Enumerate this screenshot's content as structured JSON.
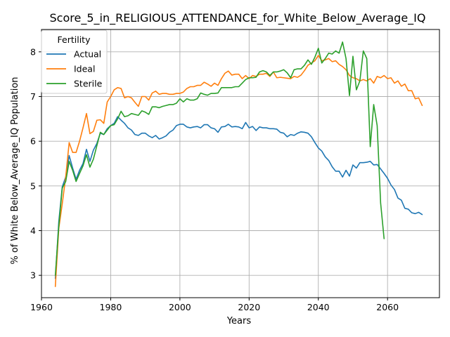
{
  "chart_data": {
    "type": "line",
    "title": "Score_5_in_RELIGIOUS_ATTENDANCE_for_White_Below_Average_IQ",
    "xlabel": "Years",
    "ylabel": "% of White Below_Average_IQ Population",
    "xlim": [
      1960,
      2075
    ],
    "ylim": [
      2.5,
      8.5
    ],
    "xticks": [
      1960,
      1980,
      2000,
      2020,
      2040,
      2060
    ],
    "yticks": [
      3,
      4,
      5,
      6,
      7,
      8
    ],
    "grid": true,
    "legend": {
      "title": "Fertility",
      "placement": "top-left"
    },
    "series": [
      {
        "name": "Actual",
        "color": "#1f77b4",
        "points": [
          [
            1964,
            2.93
          ],
          [
            1965,
            4.2
          ],
          [
            1966,
            4.98
          ],
          [
            1967,
            5.2
          ],
          [
            1968,
            5.68
          ],
          [
            1969,
            5.4
          ],
          [
            1970,
            5.15
          ],
          [
            1971,
            5.35
          ],
          [
            1972,
            5.5
          ],
          [
            1973,
            5.82
          ],
          [
            1974,
            5.55
          ],
          [
            1975,
            5.8
          ],
          [
            1976,
            5.95
          ],
          [
            1977,
            6.18
          ],
          [
            1978,
            6.15
          ],
          [
            1979,
            6.28
          ],
          [
            1980,
            6.35
          ],
          [
            1981,
            6.4
          ],
          [
            1982,
            6.55
          ],
          [
            1983,
            6.47
          ],
          [
            1984,
            6.4
          ],
          [
            1985,
            6.3
          ],
          [
            1986,
            6.25
          ],
          [
            1987,
            6.15
          ],
          [
            1988,
            6.13
          ],
          [
            1989,
            6.18
          ],
          [
            1990,
            6.18
          ],
          [
            1991,
            6.12
          ],
          [
            1992,
            6.08
          ],
          [
            1993,
            6.13
          ],
          [
            1994,
            6.05
          ],
          [
            1995,
            6.08
          ],
          [
            1996,
            6.12
          ],
          [
            1997,
            6.2
          ],
          [
            1998,
            6.25
          ],
          [
            1999,
            6.35
          ],
          [
            2000,
            6.38
          ],
          [
            2001,
            6.38
          ],
          [
            2002,
            6.32
          ],
          [
            2003,
            6.3
          ],
          [
            2004,
            6.32
          ],
          [
            2005,
            6.33
          ],
          [
            2006,
            6.3
          ],
          [
            2007,
            6.37
          ],
          [
            2008,
            6.37
          ],
          [
            2009,
            6.3
          ],
          [
            2010,
            6.28
          ],
          [
            2011,
            6.2
          ],
          [
            2012,
            6.32
          ],
          [
            2013,
            6.33
          ],
          [
            2014,
            6.38
          ],
          [
            2015,
            6.32
          ],
          [
            2016,
            6.33
          ],
          [
            2017,
            6.32
          ],
          [
            2018,
            6.28
          ],
          [
            2019,
            6.42
          ],
          [
            2020,
            6.3
          ],
          [
            2021,
            6.33
          ],
          [
            2022,
            6.24
          ],
          [
            2023,
            6.32
          ],
          [
            2024,
            6.3
          ],
          [
            2025,
            6.3
          ],
          [
            2026,
            6.28
          ],
          [
            2027,
            6.28
          ],
          [
            2028,
            6.27
          ],
          [
            2029,
            6.2
          ],
          [
            2030,
            6.18
          ],
          [
            2031,
            6.1
          ],
          [
            2032,
            6.15
          ],
          [
            2033,
            6.13
          ],
          [
            2034,
            6.18
          ],
          [
            2035,
            6.21
          ],
          [
            2036,
            6.2
          ],
          [
            2037,
            6.18
          ],
          [
            2038,
            6.1
          ],
          [
            2039,
            5.97
          ],
          [
            2040,
            5.85
          ],
          [
            2041,
            5.78
          ],
          [
            2042,
            5.65
          ],
          [
            2043,
            5.57
          ],
          [
            2044,
            5.43
          ],
          [
            2045,
            5.33
          ],
          [
            2046,
            5.33
          ],
          [
            2047,
            5.2
          ],
          [
            2048,
            5.35
          ],
          [
            2049,
            5.22
          ],
          [
            2050,
            5.47
          ],
          [
            2051,
            5.4
          ],
          [
            2052,
            5.52
          ],
          [
            2053,
            5.52
          ],
          [
            2054,
            5.53
          ],
          [
            2055,
            5.55
          ],
          [
            2056,
            5.47
          ],
          [
            2057,
            5.48
          ],
          [
            2058,
            5.38
          ],
          [
            2059,
            5.28
          ],
          [
            2060,
            5.17
          ],
          [
            2061,
            5.02
          ],
          [
            2062,
            4.92
          ],
          [
            2063,
            4.73
          ],
          [
            2064,
            4.68
          ],
          [
            2065,
            4.5
          ],
          [
            2066,
            4.48
          ],
          [
            2067,
            4.4
          ],
          [
            2068,
            4.38
          ],
          [
            2069,
            4.41
          ],
          [
            2070,
            4.36
          ]
        ]
      },
      {
        "name": "Ideal",
        "color": "#ff7f0e",
        "points": [
          [
            1964,
            2.75
          ],
          [
            1965,
            4.05
          ],
          [
            1966,
            4.6
          ],
          [
            1967,
            5.2
          ],
          [
            1968,
            5.97
          ],
          [
            1969,
            5.75
          ],
          [
            1970,
            5.75
          ],
          [
            1971,
            6.0
          ],
          [
            1972,
            6.3
          ],
          [
            1973,
            6.62
          ],
          [
            1974,
            6.17
          ],
          [
            1975,
            6.22
          ],
          [
            1976,
            6.47
          ],
          [
            1977,
            6.48
          ],
          [
            1978,
            6.4
          ],
          [
            1979,
            6.88
          ],
          [
            1980,
            7.0
          ],
          [
            1981,
            7.15
          ],
          [
            1982,
            7.2
          ],
          [
            1983,
            7.18
          ],
          [
            1984,
            6.97
          ],
          [
            1985,
            7.0
          ],
          [
            1986,
            6.97
          ],
          [
            1987,
            6.87
          ],
          [
            1988,
            6.78
          ],
          [
            1989,
            7.0
          ],
          [
            1990,
            7.0
          ],
          [
            1991,
            6.92
          ],
          [
            1992,
            7.08
          ],
          [
            1993,
            7.12
          ],
          [
            1994,
            7.05
          ],
          [
            1995,
            7.07
          ],
          [
            1996,
            7.07
          ],
          [
            1997,
            7.05
          ],
          [
            1998,
            7.05
          ],
          [
            1999,
            7.07
          ],
          [
            2000,
            7.07
          ],
          [
            2001,
            7.1
          ],
          [
            2002,
            7.18
          ],
          [
            2003,
            7.22
          ],
          [
            2004,
            7.22
          ],
          [
            2005,
            7.25
          ],
          [
            2006,
            7.25
          ],
          [
            2007,
            7.32
          ],
          [
            2008,
            7.28
          ],
          [
            2009,
            7.23
          ],
          [
            2010,
            7.3
          ],
          [
            2011,
            7.25
          ],
          [
            2012,
            7.4
          ],
          [
            2013,
            7.52
          ],
          [
            2014,
            7.57
          ],
          [
            2015,
            7.48
          ],
          [
            2016,
            7.5
          ],
          [
            2017,
            7.5
          ],
          [
            2018,
            7.4
          ],
          [
            2019,
            7.47
          ],
          [
            2020,
            7.4
          ],
          [
            2021,
            7.47
          ],
          [
            2022,
            7.45
          ],
          [
            2023,
            7.5
          ],
          [
            2024,
            7.5
          ],
          [
            2025,
            7.52
          ],
          [
            2026,
            7.45
          ],
          [
            2027,
            7.55
          ],
          [
            2028,
            7.42
          ],
          [
            2029,
            7.43
          ],
          [
            2030,
            7.42
          ],
          [
            2031,
            7.41
          ],
          [
            2032,
            7.4
          ],
          [
            2033,
            7.45
          ],
          [
            2034,
            7.43
          ],
          [
            2035,
            7.48
          ],
          [
            2036,
            7.58
          ],
          [
            2037,
            7.7
          ],
          [
            2038,
            7.75
          ],
          [
            2039,
            7.8
          ],
          [
            2040,
            7.92
          ],
          [
            2041,
            7.8
          ],
          [
            2042,
            7.82
          ],
          [
            2043,
            7.85
          ],
          [
            2044,
            7.78
          ],
          [
            2045,
            7.8
          ],
          [
            2046,
            7.72
          ],
          [
            2047,
            7.67
          ],
          [
            2048,
            7.6
          ],
          [
            2049,
            7.47
          ],
          [
            2050,
            7.42
          ],
          [
            2051,
            7.4
          ],
          [
            2052,
            7.35
          ],
          [
            2053,
            7.38
          ],
          [
            2054,
            7.35
          ],
          [
            2055,
            7.4
          ],
          [
            2056,
            7.3
          ],
          [
            2057,
            7.45
          ],
          [
            2058,
            7.42
          ],
          [
            2059,
            7.47
          ],
          [
            2060,
            7.4
          ],
          [
            2061,
            7.42
          ],
          [
            2062,
            7.3
          ],
          [
            2063,
            7.35
          ],
          [
            2064,
            7.23
          ],
          [
            2065,
            7.28
          ],
          [
            2066,
            7.13
          ],
          [
            2067,
            7.13
          ],
          [
            2068,
            6.95
          ],
          [
            2069,
            6.97
          ],
          [
            2070,
            6.8
          ]
        ]
      },
      {
        "name": "Sterile",
        "color": "#2ca02c",
        "points": [
          [
            1964,
            3.0
          ],
          [
            1965,
            4.1
          ],
          [
            1966,
            4.95
          ],
          [
            1967,
            5.1
          ],
          [
            1968,
            5.55
          ],
          [
            1969,
            5.35
          ],
          [
            1970,
            5.1
          ],
          [
            1971,
            5.28
          ],
          [
            1972,
            5.45
          ],
          [
            1973,
            5.7
          ],
          [
            1974,
            5.42
          ],
          [
            1975,
            5.6
          ],
          [
            1976,
            5.9
          ],
          [
            1977,
            6.2
          ],
          [
            1978,
            6.15
          ],
          [
            1979,
            6.25
          ],
          [
            1980,
            6.35
          ],
          [
            1981,
            6.37
          ],
          [
            1982,
            6.5
          ],
          [
            1983,
            6.67
          ],
          [
            1984,
            6.55
          ],
          [
            1985,
            6.57
          ],
          [
            1986,
            6.62
          ],
          [
            1987,
            6.6
          ],
          [
            1988,
            6.58
          ],
          [
            1989,
            6.68
          ],
          [
            1990,
            6.65
          ],
          [
            1991,
            6.6
          ],
          [
            1992,
            6.77
          ],
          [
            1993,
            6.77
          ],
          [
            1994,
            6.75
          ],
          [
            1995,
            6.78
          ],
          [
            1996,
            6.8
          ],
          [
            1997,
            6.82
          ],
          [
            1998,
            6.82
          ],
          [
            1999,
            6.85
          ],
          [
            2000,
            6.95
          ],
          [
            2001,
            6.88
          ],
          [
            2002,
            6.95
          ],
          [
            2003,
            6.92
          ],
          [
            2004,
            6.92
          ],
          [
            2005,
            6.95
          ],
          [
            2006,
            7.08
          ],
          [
            2007,
            7.05
          ],
          [
            2008,
            7.03
          ],
          [
            2009,
            7.07
          ],
          [
            2010,
            7.07
          ],
          [
            2011,
            7.08
          ],
          [
            2012,
            7.2
          ],
          [
            2013,
            7.2
          ],
          [
            2014,
            7.2
          ],
          [
            2015,
            7.2
          ],
          [
            2016,
            7.22
          ],
          [
            2017,
            7.22
          ],
          [
            2018,
            7.3
          ],
          [
            2019,
            7.38
          ],
          [
            2020,
            7.42
          ],
          [
            2021,
            7.42
          ],
          [
            2022,
            7.43
          ],
          [
            2023,
            7.55
          ],
          [
            2024,
            7.58
          ],
          [
            2025,
            7.55
          ],
          [
            2026,
            7.47
          ],
          [
            2027,
            7.55
          ],
          [
            2028,
            7.55
          ],
          [
            2029,
            7.57
          ],
          [
            2030,
            7.6
          ],
          [
            2031,
            7.53
          ],
          [
            2032,
            7.42
          ],
          [
            2033,
            7.6
          ],
          [
            2034,
            7.62
          ],
          [
            2035,
            7.62
          ],
          [
            2036,
            7.7
          ],
          [
            2037,
            7.82
          ],
          [
            2038,
            7.72
          ],
          [
            2039,
            7.88
          ],
          [
            2040,
            8.08
          ],
          [
            2041,
            7.75
          ],
          [
            2042,
            7.85
          ],
          [
            2043,
            7.97
          ],
          [
            2044,
            7.95
          ],
          [
            2045,
            8.02
          ],
          [
            2046,
            7.97
          ],
          [
            2047,
            8.22
          ],
          [
            2048,
            7.85
          ],
          [
            2049,
            7.02
          ],
          [
            2050,
            7.9
          ],
          [
            2051,
            7.15
          ],
          [
            2052,
            7.35
          ],
          [
            2053,
            8.02
          ],
          [
            2054,
            7.85
          ],
          [
            2055,
            5.88
          ],
          [
            2056,
            6.82
          ],
          [
            2057,
            6.35
          ],
          [
            2058,
            4.62
          ],
          [
            2059,
            3.82
          ]
        ]
      }
    ]
  }
}
